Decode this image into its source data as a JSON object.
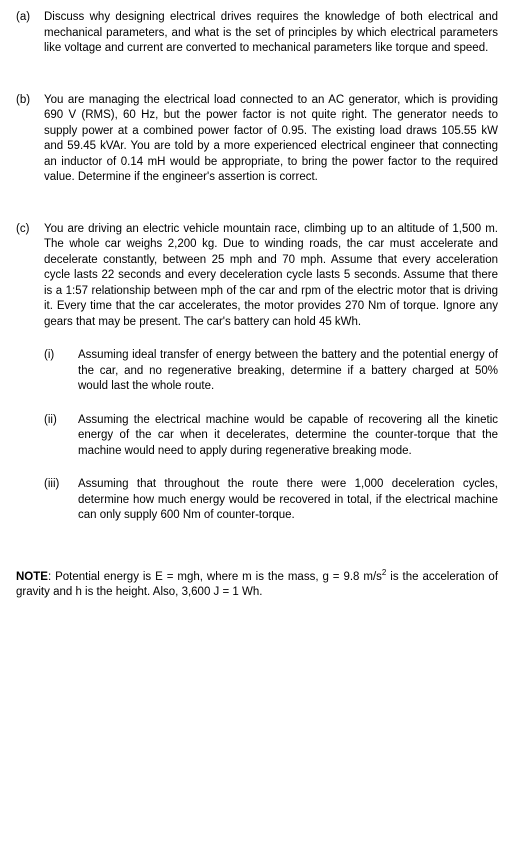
{
  "part_a": {
    "label": "(a)",
    "text": "Discuss why designing electrical drives requires the knowledge of both electrical and mechanical parameters, and what is the set of principles by which electrical parameters like voltage and current are converted to mechanical parameters like torque and speed."
  },
  "part_b": {
    "label": "(b)",
    "text": "You are managing the electrical load connected to an AC generator, which is providing 690 V (RMS), 60 Hz, but the power factor is not quite right. The generator needs to supply power at a combined power factor of 0.95. The existing load draws 105.55 kW and 59.45 kVAr. You are told by a more experienced electrical engineer that connecting an inductor of 0.14 mH would be appropriate, to bring the power factor to the required value. Determine if the engineer's assertion is correct."
  },
  "part_c": {
    "label": "(c)",
    "intro": "You are driving an electric vehicle mountain race, climbing up to an altitude of 1,500 m. The whole car weighs 2,200 kg. Due to winding roads, the car must accelerate and decelerate constantly, between 25 mph and 70 mph. Assume that every acceleration cycle lasts 22 seconds and every deceleration cycle lasts 5 seconds. Assume that there is a 1:57 relationship between mph of the car and rpm of the electric motor that is driving it. Every time that the car accelerates, the motor provides 270 Nm of torque. Ignore any gears that may be present. The car's battery can hold 45 kWh.",
    "sub_i": {
      "label": "(i)",
      "text": "Assuming ideal transfer of energy between the battery and the potential energy of the car, and no regenerative breaking, determine if a battery charged at 50% would last the whole route."
    },
    "sub_ii": {
      "label": "(ii)",
      "text": "Assuming the electrical machine would be capable of recovering all the kinetic energy of the car when it decelerates, determine the counter-torque that the machine would need to apply during regenerative breaking mode."
    },
    "sub_iii": {
      "label": "(iii)",
      "text": "Assuming that throughout the route there were 1,000 deceleration cycles, determine how much energy would be recovered in total, if the electrical machine can only supply 600 Nm of counter-torque."
    }
  },
  "note": {
    "label": "NOTE",
    "text_before": ": Potential energy is E = mgh, where m is the mass, g = 9.8 m/s",
    "sup": "2",
    "text_after": " is the acceleration of gravity and h is the height. Also, 3,600 J = 1 Wh."
  }
}
